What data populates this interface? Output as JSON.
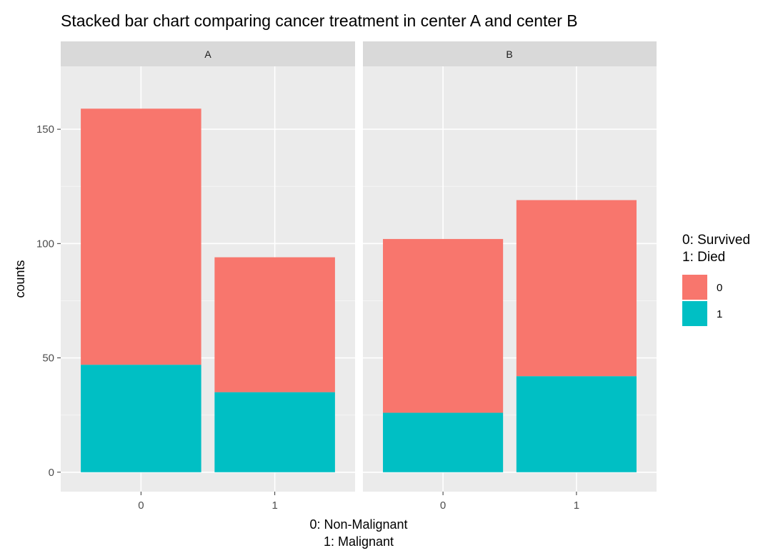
{
  "chart_data": {
    "type": "bar",
    "stacked": true,
    "title": "Stacked bar chart comparing cancer treatment in center A and center B",
    "xlabel": [
      "0: Non-Malignant",
      "1: Malignant"
    ],
    "ylabel": "counts",
    "ylim": [
      0,
      170
    ],
    "yticks": [
      0,
      50,
      100,
      150
    ],
    "grid": true,
    "legend_placement": "right",
    "legend": {
      "title": [
        "0: Survived",
        "1: Died"
      ],
      "entries": [
        {
          "label": "0",
          "color": "#F8766D"
        },
        {
          "label": "1",
          "color": "#00BFC4"
        }
      ]
    },
    "categories": [
      "0",
      "1"
    ],
    "facets": [
      {
        "label": "A",
        "series": [
          {
            "name": "0",
            "values": [
              112,
              59
            ]
          },
          {
            "name": "1",
            "values": [
              47,
              35
            ]
          }
        ]
      },
      {
        "label": "B",
        "series": [
          {
            "name": "0",
            "values": [
              76,
              77
            ]
          },
          {
            "name": "1",
            "values": [
              26,
              42
            ]
          }
        ]
      }
    ]
  }
}
